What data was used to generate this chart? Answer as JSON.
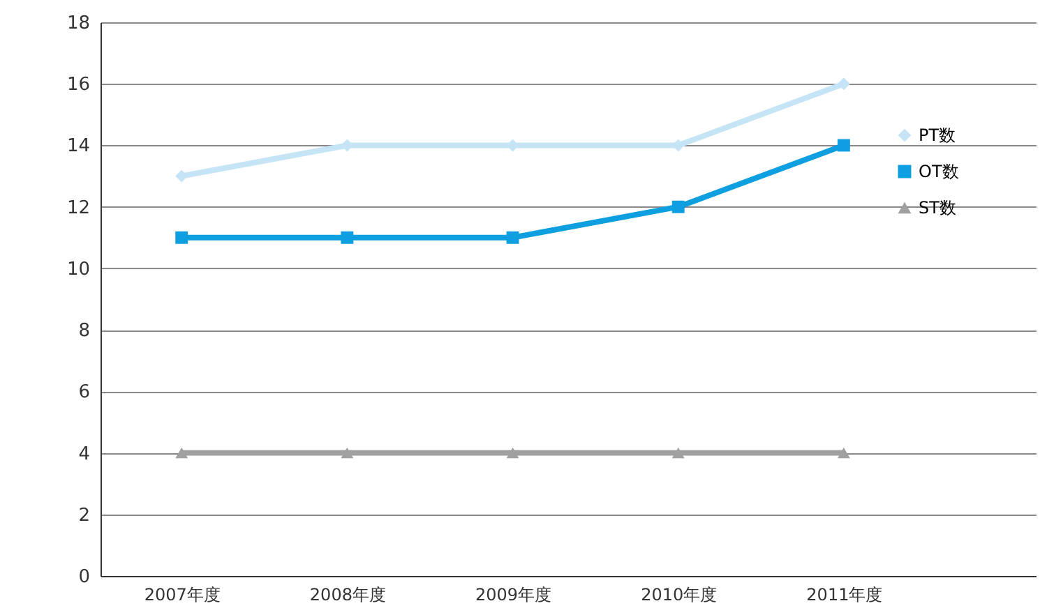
{
  "chart_data": {
    "type": "line",
    "categories": [
      "2007年度",
      "2008年度",
      "2009年度",
      "2010年度",
      "2011年度"
    ],
    "series": [
      {
        "name": "PT数",
        "color": "#c5e5f7",
        "marker": "diamond",
        "values": [
          13,
          14,
          14,
          14,
          16
        ]
      },
      {
        "name": "OT数",
        "color": "#0e9fe0",
        "marker": "square",
        "values": [
          11,
          11,
          11,
          12,
          14
        ]
      },
      {
        "name": "ST数",
        "color": "#a0a0a0",
        "marker": "triangle",
        "values": [
          4,
          4,
          4,
          4,
          4
        ]
      }
    ],
    "ylim": [
      0,
      18
    ],
    "yticks": [
      0,
      2,
      4,
      6,
      8,
      10,
      12,
      14,
      16,
      18
    ],
    "grid": "y",
    "legend": "right",
    "line_style": "solid"
  }
}
